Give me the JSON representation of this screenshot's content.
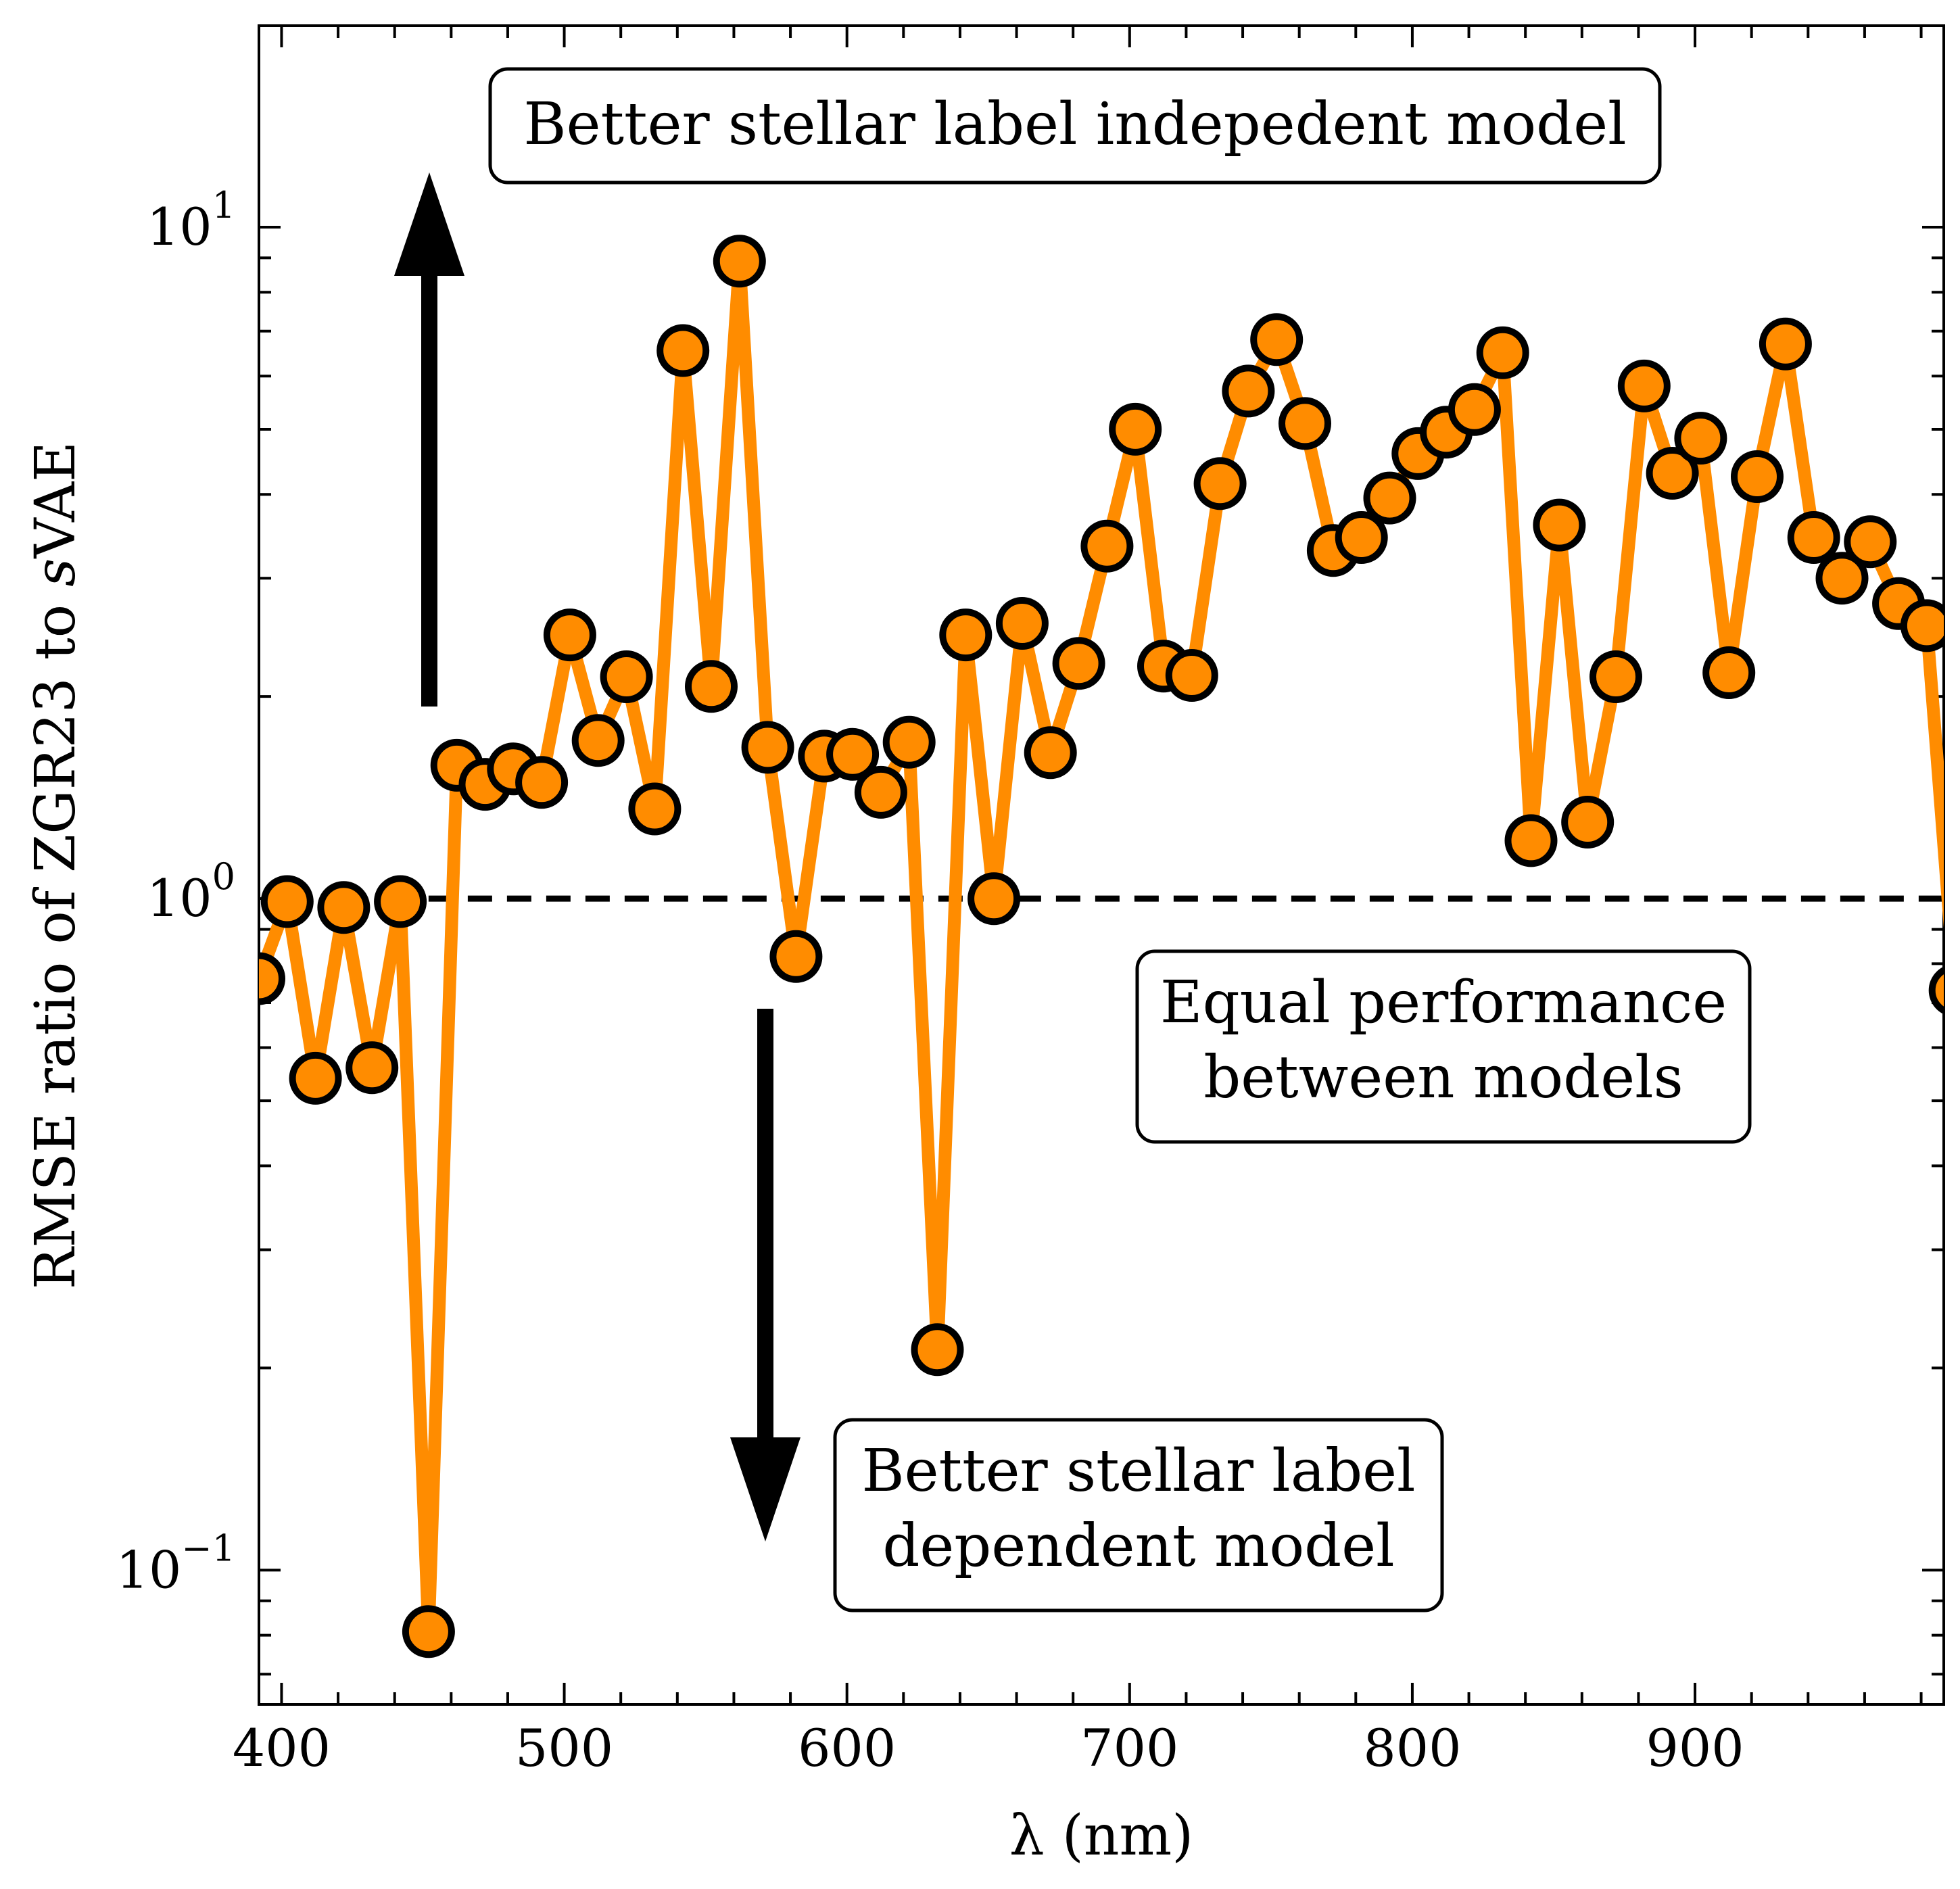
{
  "chart_data": {
    "type": "line",
    "xlabel": "λ (nm)",
    "ylabel_parts": [
      "RMSE ratio of ZGR23 to ",
      "s",
      "VAE"
    ],
    "xlim": [
      392,
      988
    ],
    "ylim_log10": [
      -1.2,
      1.3
    ],
    "yscale": "log",
    "x_ticks": [
      400,
      500,
      600,
      700,
      800,
      900
    ],
    "x_tick_labels": [
      "400",
      "500",
      "600",
      "700",
      "800",
      "900"
    ],
    "y_ticks": [
      {
        "value": 10,
        "base": "10",
        "exp": "1"
      },
      {
        "value": 1,
        "base": "10",
        "exp": "0"
      },
      {
        "value": 0.1,
        "base": "10",
        "exp": "−1"
      }
    ],
    "reference_line": {
      "y": 1.0,
      "style": "dashed",
      "color": "#000000"
    },
    "series": [
      {
        "color": "#ff8c00",
        "marker_edge": "#000000",
        "x": [
          392,
          402,
          412,
          422,
          432,
          442,
          452,
          462,
          472,
          482,
          492,
          502,
          512,
          522,
          532,
          542,
          552,
          562,
          572,
          582,
          592,
          602,
          612,
          622,
          632,
          642,
          652,
          662,
          672,
          682,
          692,
          702,
          712,
          722,
          732,
          742,
          752,
          762,
          772,
          782,
          792,
          802,
          812,
          822,
          832,
          842,
          852,
          862,
          872,
          882,
          892,
          902,
          912,
          922,
          932,
          942,
          952,
          962,
          972,
          982,
          992
        ],
        "y": [
          0.76,
          0.99,
          0.54,
          0.97,
          0.56,
          0.99,
          0.081,
          1.58,
          1.48,
          1.56,
          1.49,
          2.47,
          1.72,
          2.14,
          1.36,
          6.55,
          2.07,
          8.9,
          1.68,
          0.82,
          1.63,
          1.64,
          1.44,
          1.71,
          0.213,
          2.47,
          1.0,
          2.57,
          1.65,
          2.24,
          3.35,
          5.0,
          2.22,
          2.15,
          4.15,
          5.7,
          6.8,
          5.1,
          3.3,
          3.45,
          3.95,
          4.6,
          4.95,
          5.35,
          6.5,
          1.22,
          3.6,
          1.3,
          2.14,
          5.8,
          4.3,
          4.85,
          2.17,
          4.25,
          6.7,
          3.45,
          3.0,
          3.4,
          2.75,
          2.55,
          0.73
        ]
      }
    ],
    "annotations": [
      {
        "lines": [
          "Better stellar label indepedent model"
        ]
      },
      {
        "lines": [
          "Equal performance",
          "between models"
        ]
      },
      {
        "lines": [
          "Better stellar label",
          "dependent model"
        ]
      }
    ],
    "arrows": [
      {
        "direction": "up"
      },
      {
        "direction": "down"
      }
    ]
  }
}
